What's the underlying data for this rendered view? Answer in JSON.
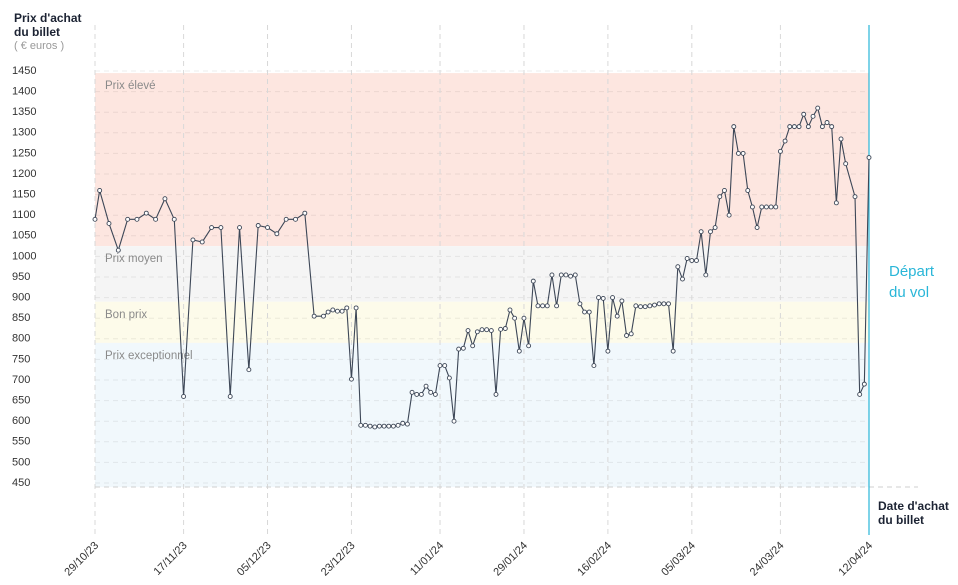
{
  "chart_data": {
    "type": "line",
    "y_title": "Prix d'achat du billet",
    "y_unit": "( € euros )",
    "x_title": "Date d'achat du billet",
    "color": "#3d4757",
    "ylim": [
      450,
      1450
    ],
    "yticks": [
      450,
      500,
      550,
      600,
      650,
      700,
      750,
      800,
      850,
      900,
      950,
      1000,
      1050,
      1100,
      1150,
      1200,
      1250,
      1300,
      1350,
      1400,
      1450
    ],
    "xlim": [
      "29/10/23",
      "12/04/24"
    ],
    "xticks": [
      "29/10/23",
      "17/11/23",
      "05/12/23",
      "23/12/23",
      "11/01/24",
      "29/01/24",
      "16/02/24",
      "05/03/24",
      "24/03/24",
      "12/04/24"
    ],
    "grid": true,
    "bands": [
      {
        "label": "Prix élevé",
        "from": 1025,
        "to": 1445,
        "color": "#fde6e0"
      },
      {
        "label": "Prix moyen",
        "from": 890,
        "to": 1025,
        "color": "#f5f5f5"
      },
      {
        "label": "Bon prix",
        "from": 790,
        "to": 890,
        "color": "#fdfbea"
      },
      {
        "label": "Prix exceptionnel",
        "from": 440,
        "to": 790,
        "color": "#f1f8fc"
      }
    ],
    "annotation": {
      "text": "Départ du vol",
      "x": "12/04/24",
      "color": "#29b6d8"
    },
    "x": [
      "29/10/23",
      "30/10/23",
      "01/11/23",
      "03/11/23",
      "05/11/23",
      "07/11/23",
      "09/11/23",
      "11/11/23",
      "13/11/23",
      "15/11/23",
      "17/11/23",
      "19/11/23",
      "21/11/23",
      "23/11/23",
      "25/11/23",
      "27/11/23",
      "29/11/23",
      "01/12/23",
      "03/12/23",
      "05/12/23",
      "07/12/23",
      "09/12/23",
      "11/12/23",
      "13/12/23",
      "15/12/23",
      "17/12/23",
      "18/12/23",
      "19/12/23",
      "20/12/23",
      "21/12/23",
      "22/12/23",
      "23/12/23",
      "24/12/23",
      "25/12/23",
      "26/12/23",
      "27/12/23",
      "28/12/23",
      "29/12/23",
      "30/12/23",
      "31/12/23",
      "01/01/24",
      "02/01/24",
      "03/01/24",
      "04/01/24",
      "05/01/24",
      "06/01/24",
      "07/01/24",
      "08/01/24",
      "09/01/24",
      "10/01/24",
      "11/01/24",
      "12/01/24",
      "13/01/24",
      "14/01/24",
      "15/01/24",
      "16/01/24",
      "17/01/24",
      "18/01/24",
      "19/01/24",
      "20/01/24",
      "21/01/24",
      "22/01/24",
      "23/01/24",
      "24/01/24",
      "25/01/24",
      "26/01/24",
      "27/01/24",
      "28/01/24",
      "29/01/24",
      "30/01/24",
      "31/01/24",
      "01/02/24",
      "02/02/24",
      "03/02/24",
      "04/02/24",
      "05/02/24",
      "06/02/24",
      "07/02/24",
      "08/02/24",
      "09/02/24",
      "10/02/24",
      "11/02/24",
      "12/02/24",
      "13/02/24",
      "14/02/24",
      "15/02/24",
      "16/02/24",
      "17/02/24",
      "18/02/24",
      "19/02/24",
      "20/02/24",
      "21/02/24",
      "22/02/24",
      "23/02/24",
      "24/02/24",
      "25/02/24",
      "26/02/24",
      "27/02/24",
      "28/02/24",
      "29/02/24",
      "01/03/24",
      "02/03/24",
      "03/03/24",
      "04/03/24",
      "05/03/24",
      "06/03/24",
      "07/03/24",
      "08/03/24",
      "09/03/24",
      "10/03/24",
      "11/03/24",
      "12/03/24",
      "13/03/24",
      "14/03/24",
      "15/03/24",
      "16/03/24",
      "17/03/24",
      "18/03/24",
      "19/03/24",
      "20/03/24",
      "21/03/24",
      "22/03/24",
      "23/03/24",
      "24/03/24",
      "25/03/24",
      "26/03/24",
      "27/03/24",
      "28/03/24",
      "29/03/24",
      "30/03/24",
      "31/03/24",
      "01/04/24",
      "02/04/24",
      "03/04/24",
      "04/04/24",
      "05/04/24",
      "06/04/24",
      "07/04/24",
      "09/04/24",
      "10/04/24",
      "11/04/24",
      "12/04/24"
    ],
    "values": [
      1090,
      1160,
      1080,
      1015,
      1090,
      1090,
      1105,
      1090,
      1140,
      1090,
      660,
      1040,
      1035,
      1070,
      1070,
      660,
      1070,
      725,
      1075,
      1070,
      1055,
      1090,
      1090,
      1105,
      855,
      855,
      865,
      870,
      867,
      867,
      875,
      702,
      875,
      590,
      590,
      588,
      586,
      588,
      588,
      588,
      588,
      590,
      595,
      593,
      670,
      665,
      665,
      685,
      670,
      665,
      735,
      735,
      705,
      600,
      775,
      777,
      820,
      783,
      817,
      822,
      822,
      820,
      665,
      823,
      825,
      870,
      850,
      770,
      850,
      783,
      940,
      880,
      880,
      880,
      955,
      880,
      955,
      955,
      952,
      955,
      885,
      865,
      865,
      735,
      900,
      898,
      770,
      900,
      855,
      892,
      808,
      812,
      880,
      878,
      878,
      880,
      882,
      885,
      885,
      885,
      770,
      975,
      945,
      995,
      990,
      990,
      1060,
      955,
      1060,
      1070,
      1145,
      1160,
      1100,
      1315,
      1250,
      1250,
      1160,
      1120,
      1070,
      1120,
      1120,
      1120,
      1120,
      1255,
      1280,
      1315,
      1315,
      1315,
      1345,
      1315,
      1340,
      1360,
      1315,
      1325,
      1315,
      1130,
      1285,
      1225,
      1145,
      665,
      690,
      1240
    ]
  }
}
